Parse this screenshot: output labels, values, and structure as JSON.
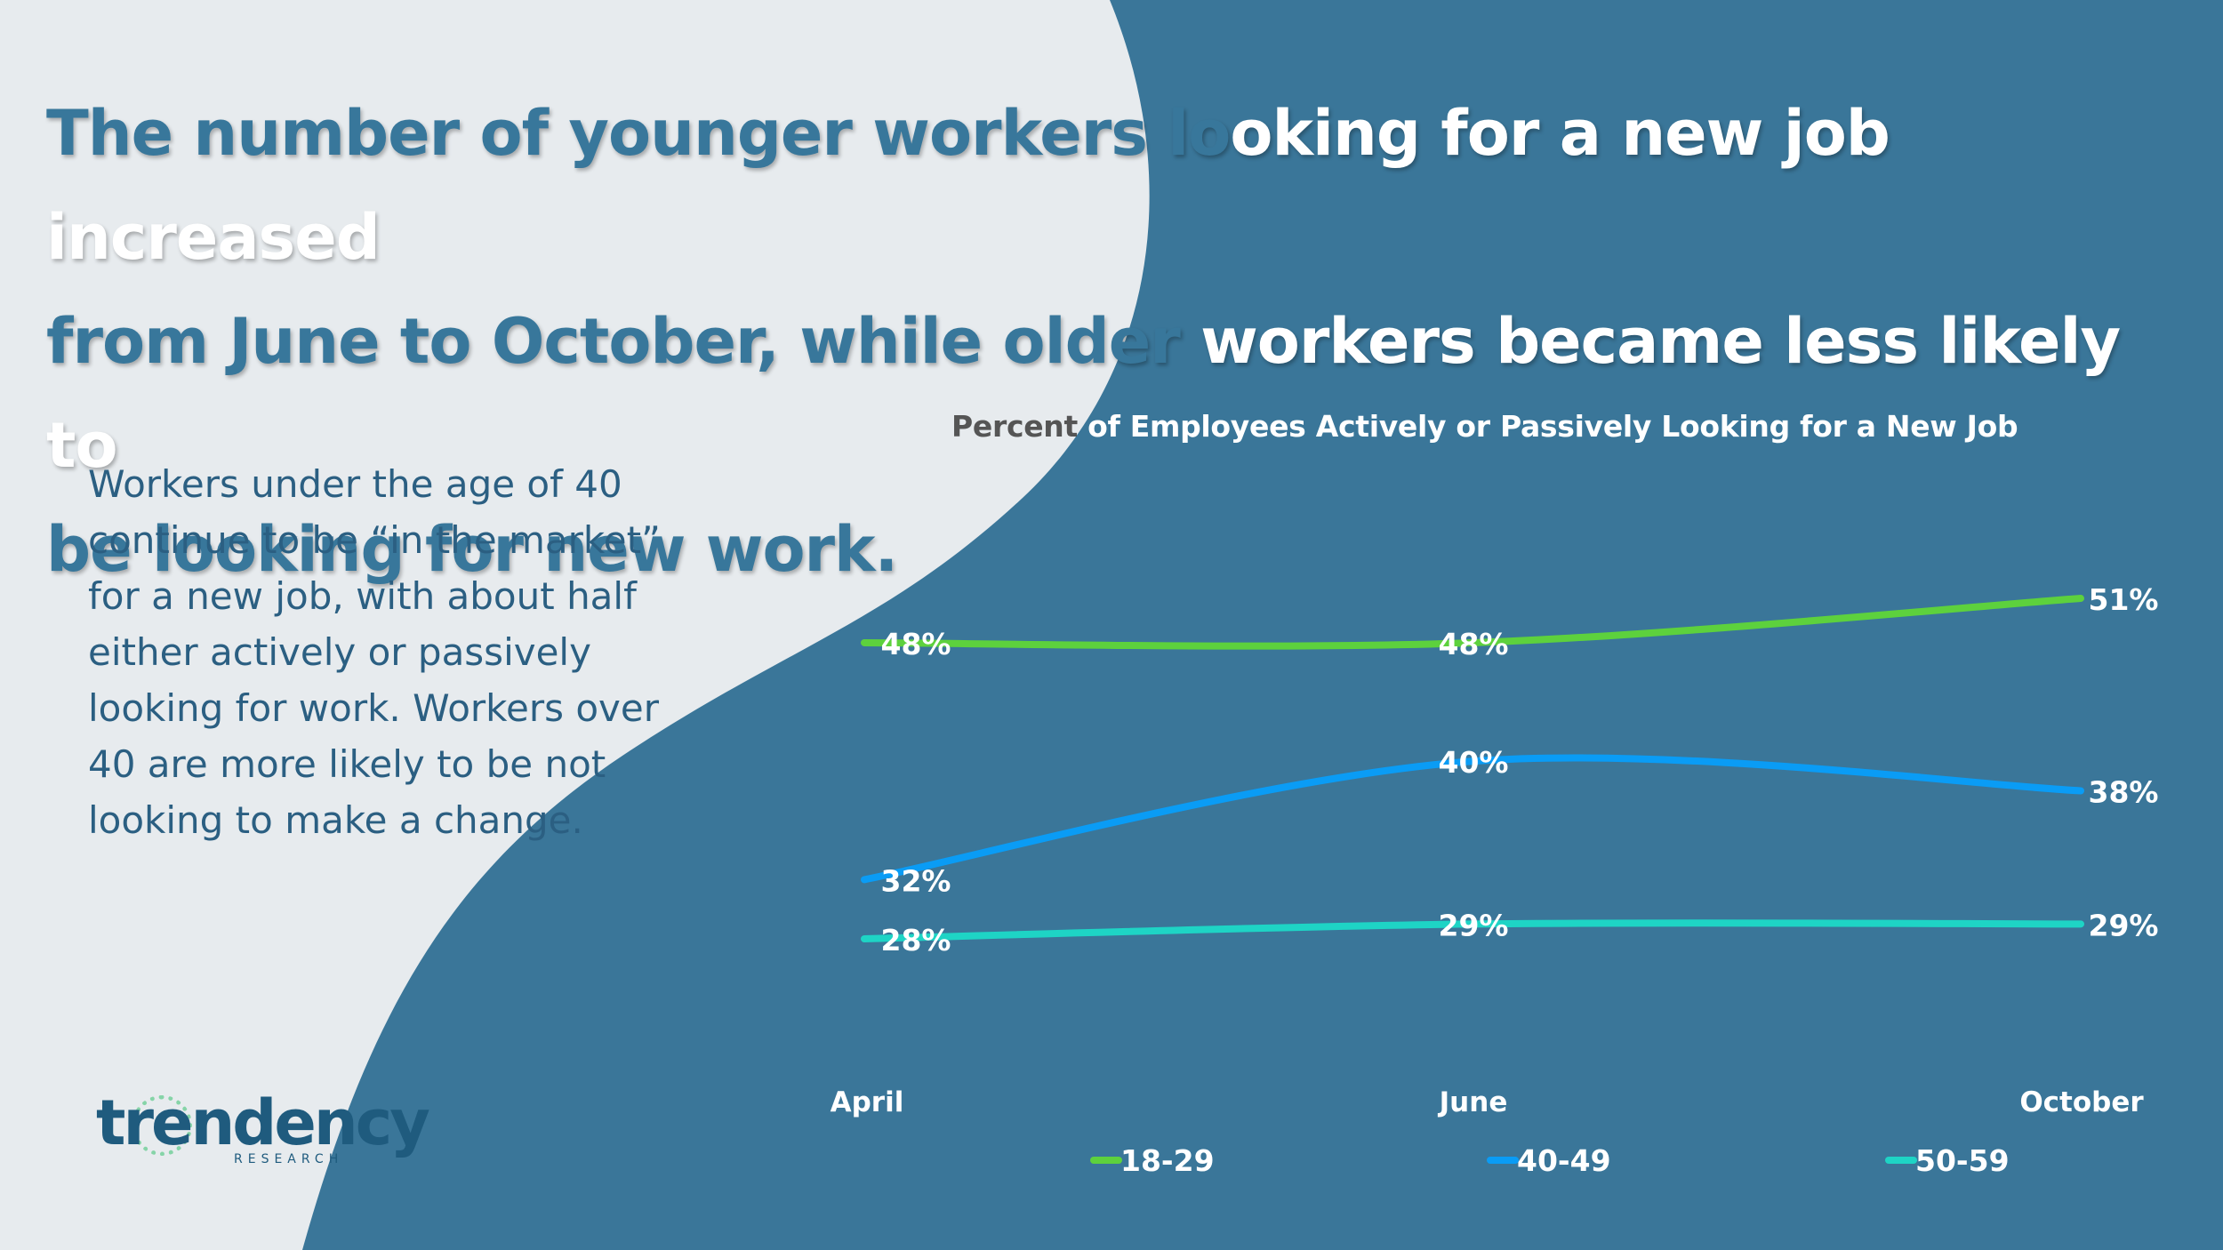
{
  "headline": {
    "light_part": "The number of younger workers lo",
    "dark_part_1": "oking for a new job increased",
    "line2_light": "from June to October, while older ",
    "line2_dark": "workers became less likely to",
    "line3_light": "be looking for new work."
  },
  "body_text": "Workers under the age of 40 continue to be “in the market” for a new job, with about half either actively or passively looking for work. Workers over 40 are more likely to be not looking to make a change.",
  "chart_title": {
    "part_light_bg": "Percent ",
    "part_dark_bg": "of Employees Actively or Passively Looking for a New Job"
  },
  "logo": {
    "word": "trendency",
    "sub": "RESEARCH"
  },
  "colors": {
    "background_light": "#e7ebee",
    "background_dark": "#3a7699",
    "headline_blue": "#38779b",
    "series_18_29": "#5dd13d",
    "series_40_49": "#0a9cf5",
    "series_50_59": "#1ed4c5"
  },
  "chart_data": {
    "type": "line",
    "title": "Percent of Employees Actively or Passively Looking for a New Job",
    "categories": [
      "April",
      "June",
      "October"
    ],
    "series": [
      {
        "name": "18-29",
        "values": [
          48,
          48,
          51
        ],
        "labels": [
          "48%",
          "48%",
          "51%"
        ],
        "color": "#5dd13d"
      },
      {
        "name": "40-49",
        "values": [
          32,
          40,
          38
        ],
        "labels": [
          "32%",
          "40%",
          "38%"
        ],
        "color": "#0a9cf5"
      },
      {
        "name": "50-59",
        "values": [
          28,
          29,
          29
        ],
        "labels": [
          "28%",
          "29%",
          "29%"
        ],
        "color": "#1ed4c5"
      }
    ],
    "ylim": [
      20,
      55
    ],
    "grid": false,
    "legend": "bottom",
    "smooth": true
  }
}
